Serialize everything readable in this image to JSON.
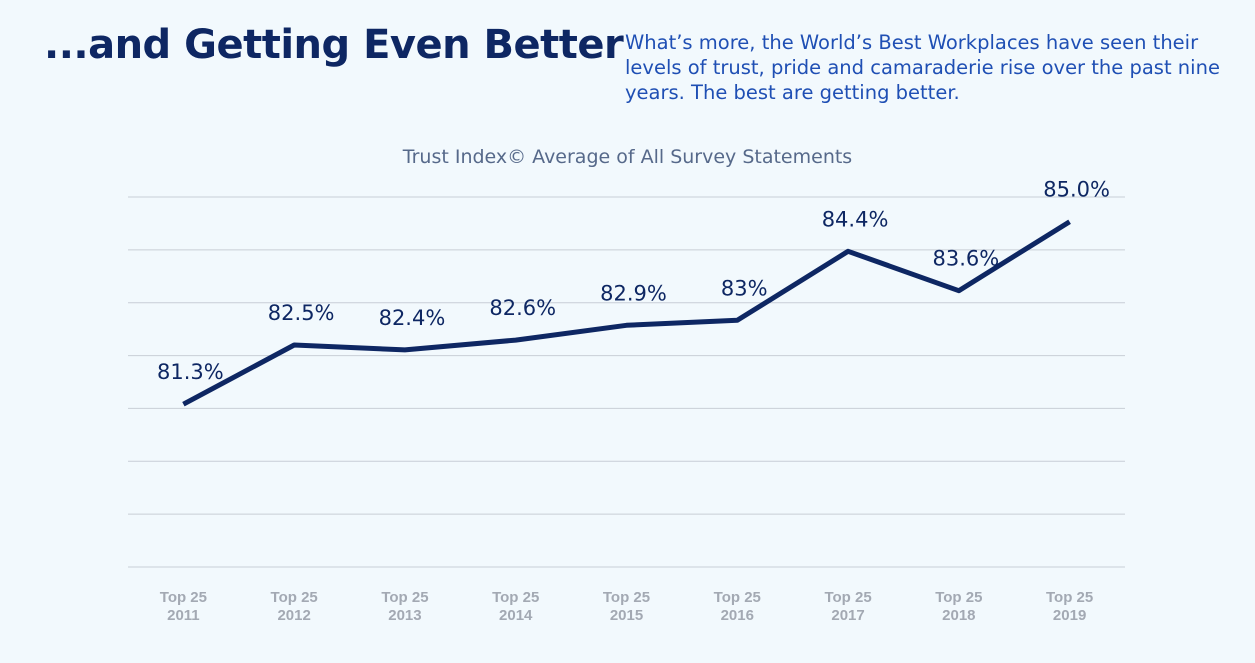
{
  "header": {
    "title": "...and Getting Even Better",
    "description": "What’s more, the World’s Best Workplaces have seen their levels of trust, pride and camaraderie rise over the past nine years. The best are getting better."
  },
  "colors": {
    "background": "#f2f9fd",
    "title": "#0e2763",
    "description": "#1f4fb4",
    "line": "#0e2763",
    "grid": "#c8ced6",
    "tick": "#a3a9b3"
  },
  "chart_data": {
    "type": "line",
    "title": "Trust Index© Average of All Survey Statements",
    "xlabel": "",
    "ylabel": "",
    "categories": [
      [
        "Top 25",
        "2011"
      ],
      [
        "Top 25",
        "2012"
      ],
      [
        "Top 25",
        "2013"
      ],
      [
        "Top 25",
        "2014"
      ],
      [
        "Top 25",
        "2015"
      ],
      [
        "Top 25",
        "2016"
      ],
      [
        "Top 25",
        "2017"
      ],
      [
        "Top 25",
        "2018"
      ],
      [
        "Top 25",
        "2019"
      ]
    ],
    "series": [
      {
        "name": "Trust Index Average",
        "values": [
          81.3,
          82.5,
          82.4,
          82.6,
          82.9,
          83.0,
          84.4,
          83.6,
          85.0
        ]
      }
    ],
    "data_labels": [
      "81.3%",
      "82.5%",
      "82.4%",
      "82.6%",
      "82.9%",
      "83%",
      "84.4%",
      "83.6%",
      "85.0%"
    ],
    "ylim": [
      78,
      85.5
    ],
    "gridlines": 8,
    "grid": true,
    "legend": "none"
  }
}
